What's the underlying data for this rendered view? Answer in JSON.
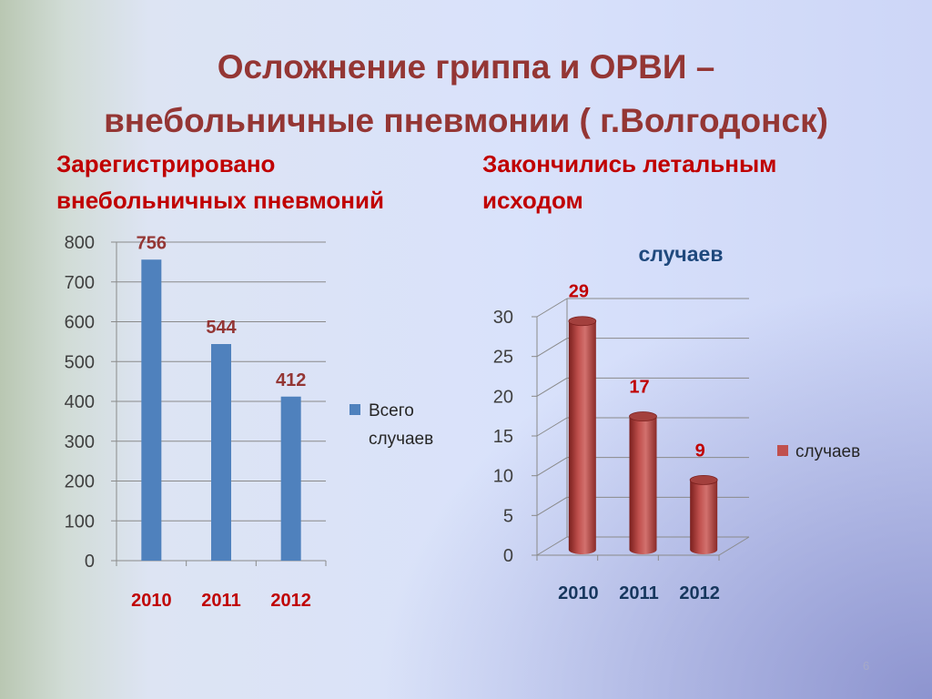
{
  "slide": {
    "title_line1": "Осложнение гриппа и ОРВИ –",
    "title_line2": "внебольничные пневмонии ( г.Волгодонск)",
    "left_heading_line1": "Зарегистрировано",
    "left_heading_line2": "внебольничных пневмоний",
    "right_heading_line1": "Закончились летальным",
    "right_heading_line2": "исходом",
    "page_number": "6"
  },
  "chart_data": [
    {
      "type": "bar",
      "title": "",
      "categories": [
        "2010",
        "2011",
        "2012"
      ],
      "series": [
        {
          "name": "Всего случаев",
          "values": [
            756,
            544,
            412
          ],
          "color": "#4f81bd"
        }
      ],
      "data_labels": [
        "756",
        "544",
        "412"
      ],
      "ylim": [
        0,
        800
      ],
      "yticks": [
        0,
        100,
        200,
        300,
        400,
        500,
        600,
        700,
        800
      ],
      "grid": true,
      "legend": "right",
      "legend_lines": [
        "Всего",
        "случаев"
      ],
      "category_label_color": "#c00000",
      "data_label_color": "#943634"
    },
    {
      "type": "bar",
      "style": "3d-cylinder",
      "title": "случаев",
      "categories": [
        "2010",
        "2011",
        "2012"
      ],
      "series": [
        {
          "name": "случаев",
          "values": [
            29,
            17,
            9
          ],
          "color": "#c0504d"
        }
      ],
      "data_labels": [
        "29",
        "17",
        "9"
      ],
      "ylim": [
        0,
        30
      ],
      "yticks": [
        0,
        5,
        10,
        15,
        20,
        25,
        30
      ],
      "grid": true,
      "legend": "right",
      "category_label_color": "#17375e",
      "data_label_color": "#c00000",
      "title_color": "#1f497d"
    }
  ]
}
